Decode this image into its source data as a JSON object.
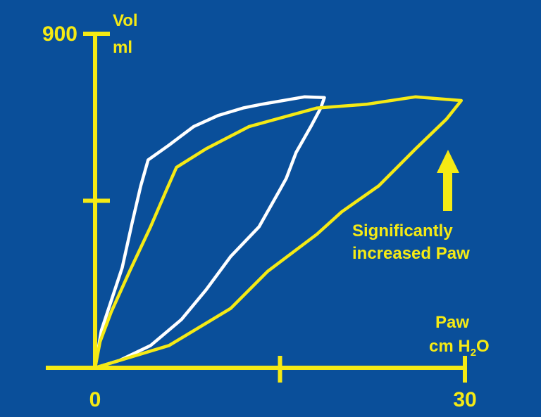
{
  "colors": {
    "background": "#0a4f9a",
    "axis": "#f5ea14",
    "annotation": "#f5ea14",
    "baseline_loop": "#ffffff",
    "increased_loop": "#f5ea14"
  },
  "annotation": {
    "line1": "Significantly",
    "line2": "increased Paw",
    "arrow_icon": "up-arrow-icon"
  },
  "chart_data": {
    "type": "line",
    "title": "",
    "xlabel": {
      "line1": "Paw",
      "line2_base": "cm H",
      "line2_sub": "2",
      "line2_tail": "O"
    },
    "ylabel": {
      "line1": "Vol",
      "line2": "ml"
    },
    "xlim": [
      0,
      30
    ],
    "ylim": [
      0,
      900
    ],
    "x_ticks": [
      {
        "value": 0,
        "label": "0"
      },
      {
        "value": 15,
        "label": ""
      },
      {
        "value": 30,
        "label": "30"
      }
    ],
    "y_ticks": [
      {
        "value": 450,
        "label": ""
      },
      {
        "value": 900,
        "label": "900"
      }
    ],
    "grid": false,
    "legend": "none",
    "series": [
      {
        "color": "#ffffff",
        "closed": true,
        "points": [
          [
            0.0,
            0
          ],
          [
            0.5,
            100
          ],
          [
            1.3,
            180
          ],
          [
            2.2,
            270
          ],
          [
            3.0,
            390
          ],
          [
            3.7,
            490
          ],
          [
            4.3,
            560
          ],
          [
            6.0,
            600
          ],
          [
            8.0,
            650
          ],
          [
            10.0,
            680
          ],
          [
            12.0,
            700
          ],
          [
            13.5,
            710
          ],
          [
            17.0,
            730
          ],
          [
            18.6,
            728
          ],
          [
            18.3,
            700
          ],
          [
            17.5,
            650
          ],
          [
            16.3,
            580
          ],
          [
            15.5,
            510
          ],
          [
            15.0,
            480
          ],
          [
            13.3,
            380
          ],
          [
            11.0,
            300
          ],
          [
            9.0,
            210
          ],
          [
            7.0,
            130
          ],
          [
            4.5,
            60
          ],
          [
            2.0,
            20
          ],
          [
            0.0,
            0
          ]
        ]
      },
      {
        "color": "#f5ea14",
        "closed": true,
        "points": [
          [
            0.0,
            0
          ],
          [
            0.4,
            70
          ],
          [
            1.3,
            150
          ],
          [
            2.8,
            260
          ],
          [
            4.5,
            380
          ],
          [
            5.8,
            480
          ],
          [
            6.6,
            540
          ],
          [
            9.0,
            590
          ],
          [
            12.5,
            650
          ],
          [
            18.0,
            700
          ],
          [
            22.0,
            710
          ],
          [
            26.0,
            730
          ],
          [
            29.7,
            720
          ],
          [
            28.5,
            670
          ],
          [
            26.0,
            590
          ],
          [
            23.0,
            490
          ],
          [
            20.0,
            420
          ],
          [
            18.0,
            360
          ],
          [
            14.0,
            260
          ],
          [
            11.0,
            160
          ],
          [
            9.0,
            120
          ],
          [
            6.0,
            60
          ],
          [
            3.0,
            30
          ],
          [
            0.0,
            0
          ]
        ]
      }
    ]
  }
}
